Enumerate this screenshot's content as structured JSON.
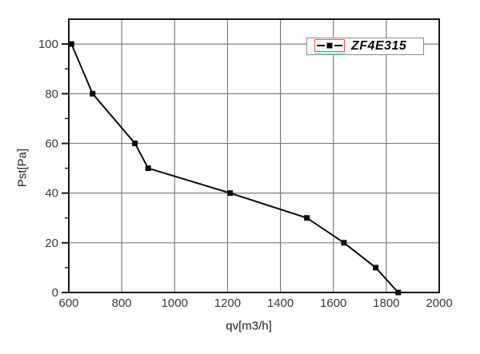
{
  "window": {
    "background": "#ffffff"
  },
  "chart_data": {
    "type": "line",
    "title": "",
    "xlabel": "qv[m3/h]",
    "ylabel": "Pst[Pa]",
    "xlim": [
      600,
      2000
    ],
    "ylim": [
      0,
      110
    ],
    "x_ticks": [
      600,
      800,
      1000,
      1200,
      1400,
      1600,
      1800,
      2000
    ],
    "y_ticks": [
      0,
      20,
      40,
      60,
      80,
      100
    ],
    "y_minor_ticks": [
      10,
      30,
      50,
      70,
      90
    ],
    "grid": true,
    "legend": {
      "position": "top-right",
      "selected": true
    },
    "series": [
      {
        "name": "ZF4E315",
        "marker": "square",
        "x": [
          610,
          690,
          850,
          900,
          1210,
          1500,
          1640,
          1760,
          1845
        ],
        "y": [
          100,
          80,
          60,
          50,
          40,
          30,
          20,
          10,
          0
        ]
      }
    ],
    "colors": {
      "series_line": "#0d0d0d",
      "marker": "#0d0d0d",
      "grid": "#7d7d7d",
      "axis": "#1a1a1a",
      "tick_label": "#3a3a3a",
      "axis_label": "#222222",
      "legend_border": "#8c8c8c",
      "legend_bg": "#ffffff",
      "selection_box": "#ff5050",
      "selection_underline": "#8ef6f6",
      "legend_text": "#0a0a0a"
    }
  }
}
